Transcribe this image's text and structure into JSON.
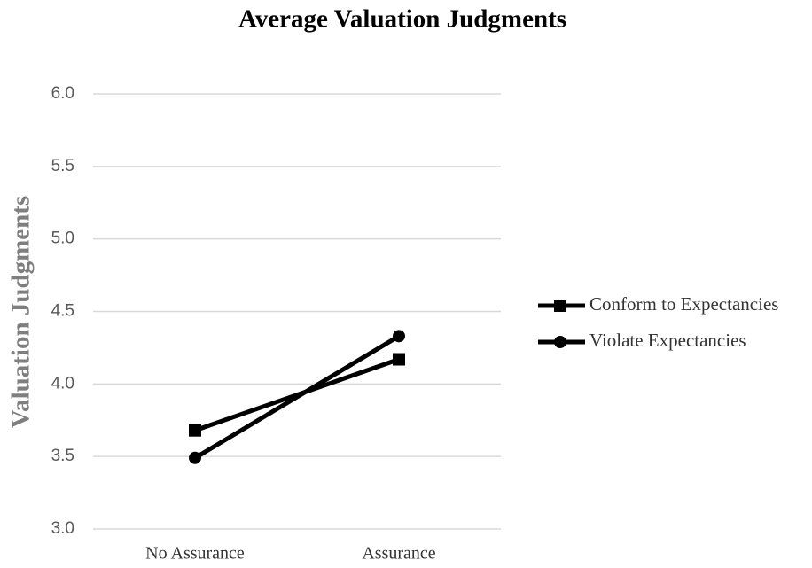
{
  "chart_data": {
    "type": "line",
    "title": "Average Valuation Judgments",
    "y_label": "Valuation Judgments",
    "categories": [
      "No Assurance",
      "Assurance"
    ],
    "series": [
      {
        "name": "Conform to Expectancies",
        "color": "#000000",
        "marker": "square",
        "values": [
          3.68,
          4.17
        ]
      },
      {
        "name": "Violate Expectancies",
        "color": "#000000",
        "marker": "circle",
        "values": [
          3.49,
          4.33
        ]
      }
    ],
    "ylim": [
      3,
      6
    ],
    "yticks": [
      {
        "value": 3,
        "label": "3.0"
      },
      {
        "value": 3.5,
        "label": "3.5"
      },
      {
        "value": 4,
        "label": "4.0"
      },
      {
        "value": 4.5,
        "label": "4.5"
      },
      {
        "value": 5,
        "label": "5.0"
      },
      {
        "value": 5.5,
        "label": "5.5"
      },
      {
        "value": 6,
        "label": "6.0"
      }
    ],
    "grid": true,
    "legend": "right"
  }
}
